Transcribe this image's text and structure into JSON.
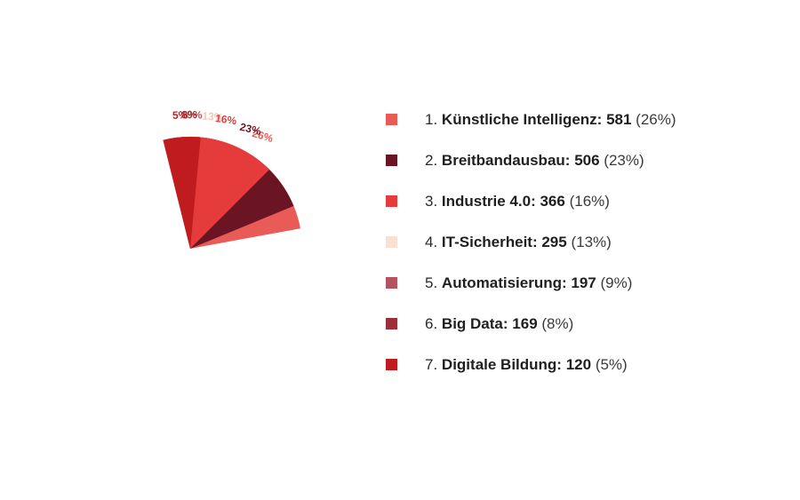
{
  "chart_data": {
    "type": "pie",
    "categories": [
      "Künstliche Intelligenz",
      "Breitbandausbau",
      "Industrie 4.0",
      "IT-Sicherheit",
      "Automatisierung",
      "Big Data",
      "Digitale Bildung"
    ],
    "values": [
      581,
      506,
      366,
      295,
      197,
      169,
      120
    ],
    "percent_labels": [
      "26%",
      "23%",
      "16%",
      "13%",
      "9%",
      "8%",
      "5%"
    ],
    "colors": [
      "#e85b56",
      "#6b1524",
      "#e63b3b",
      "#f9e0d3",
      "#b35460",
      "#9c2f37",
      "#c01b1e"
    ],
    "legend": [
      {
        "num": "1.",
        "label": "Künstliche Intelligenz:",
        "value": "581",
        "pct": "(26%)"
      },
      {
        "num": "2.",
        "label": "Breitbandausbau:",
        "value": "506",
        "pct": "(23%)"
      },
      {
        "num": "3.",
        "label": "Industrie 4.0:",
        "value": "366",
        "pct": "(16%)"
      },
      {
        "num": "4.",
        "label": "IT-Sicherheit:",
        "value": "295",
        "pct": "(13%)"
      },
      {
        "num": "5.",
        "label": "Automatisierung:",
        "value": "197",
        "pct": "(9%)"
      },
      {
        "num": "6.",
        "label": "Big Data:",
        "value": "169",
        "pct": "(8%)"
      },
      {
        "num": "7.",
        "label": "Digitale Bildung:",
        "value": "120",
        "pct": "(5%)"
      }
    ],
    "legend_position": "right"
  }
}
